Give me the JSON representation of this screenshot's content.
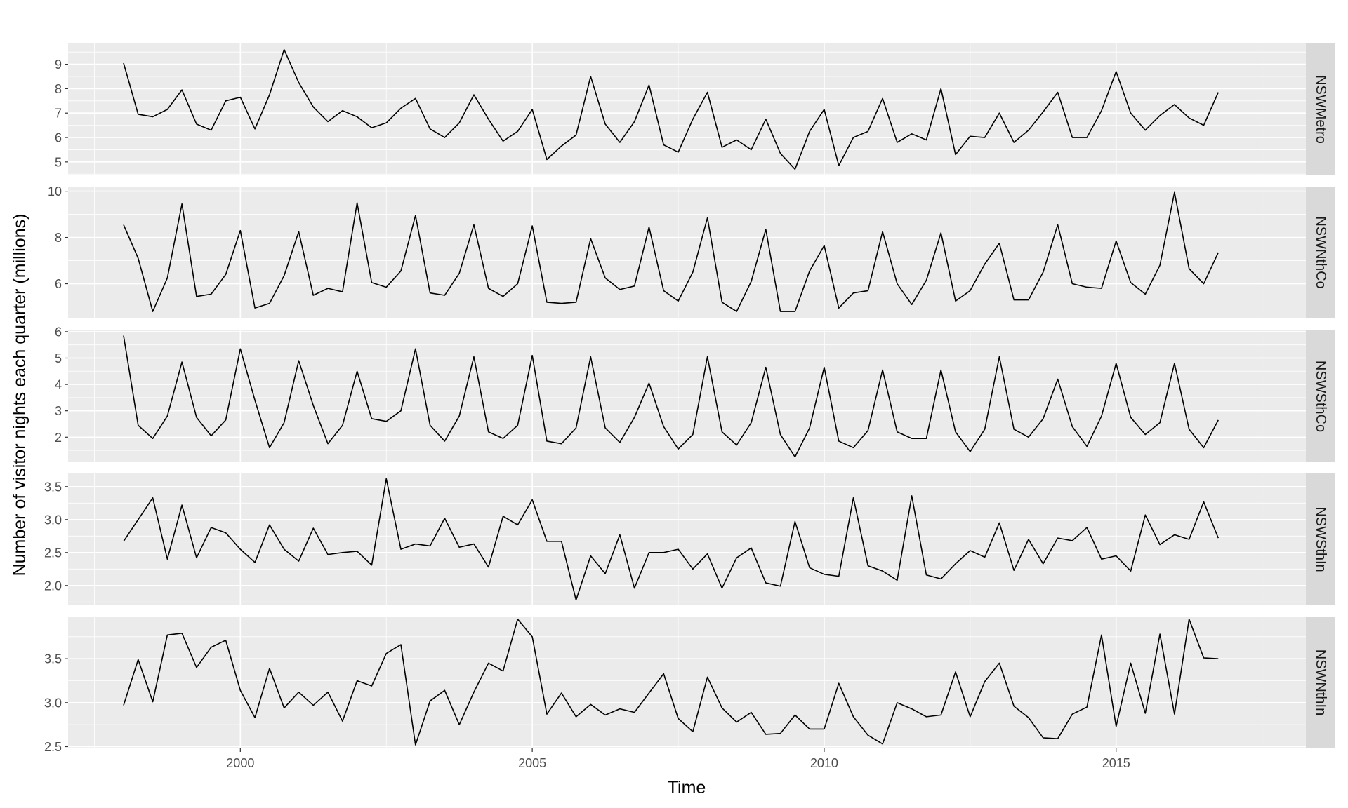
{
  "chart_data": {
    "type": "line",
    "facet": "vertical",
    "xlabel": "Time",
    "ylabel": "Number of visitor nights each quarter (millions)",
    "x_start": 1998.0,
    "x_step": 0.25,
    "xlim": [
      1997.05,
      2018.25
    ],
    "x_ticks": [
      2000,
      2005,
      2010,
      2015
    ],
    "grid": true,
    "series": [
      {
        "name": "NSWMetro",
        "ylim": [
          4.45,
          9.85
        ],
        "y_ticks": [
          5,
          6,
          7,
          8,
          9
        ],
        "values": [
          9.05,
          6.95,
          6.85,
          7.15,
          7.95,
          6.55,
          6.3,
          7.5,
          7.65,
          6.35,
          7.75,
          9.6,
          8.25,
          7.25,
          6.65,
          7.1,
          6.85,
          6.4,
          6.6,
          7.2,
          7.6,
          6.35,
          6.0,
          6.6,
          7.75,
          6.75,
          5.85,
          6.25,
          7.15,
          5.1,
          5.65,
          6.1,
          8.5,
          6.55,
          5.8,
          6.65,
          8.15,
          5.7,
          5.4,
          6.75,
          7.85,
          5.6,
          5.9,
          5.5,
          6.75,
          5.35,
          4.7,
          6.25,
          7.15,
          4.85,
          6.0,
          6.25,
          7.6,
          5.8,
          6.15,
          5.9,
          8.0,
          5.3,
          6.05,
          6.0,
          7.0,
          5.8,
          6.3,
          7.05,
          7.85,
          6.0,
          6.0,
          7.1,
          8.7,
          7.0,
          6.3,
          6.9,
          7.35,
          6.8,
          6.5,
          7.85
        ]
      },
      {
        "name": "NSWNthCo",
        "ylim": [
          4.5,
          10.2
        ],
        "y_ticks": [
          6,
          8,
          10
        ],
        "values": [
          8.55,
          7.1,
          4.8,
          6.25,
          9.45,
          5.45,
          5.55,
          6.4,
          8.3,
          4.95,
          5.15,
          6.35,
          8.25,
          5.5,
          5.8,
          5.65,
          9.5,
          6.05,
          5.85,
          6.55,
          8.95,
          5.6,
          5.5,
          6.45,
          8.55,
          5.8,
          5.45,
          6.0,
          8.5,
          5.2,
          5.15,
          5.2,
          7.95,
          6.25,
          5.75,
          5.9,
          8.45,
          5.7,
          5.25,
          6.5,
          8.85,
          5.2,
          4.8,
          6.1,
          8.35,
          4.8,
          4.8,
          6.55,
          7.65,
          4.95,
          5.6,
          5.7,
          8.25,
          6.0,
          5.1,
          6.15,
          8.2,
          5.25,
          5.7,
          6.85,
          7.75,
          5.3,
          5.3,
          6.5,
          8.55,
          6.0,
          5.85,
          5.8,
          7.85,
          6.05,
          5.55,
          6.8,
          9.95,
          6.65,
          6.0,
          7.35
        ]
      },
      {
        "name": "NSWSthCo",
        "ylim": [
          1.05,
          6.05
        ],
        "y_ticks": [
          2,
          3,
          4,
          5,
          6
        ],
        "values": [
          5.85,
          2.45,
          1.95,
          2.8,
          4.85,
          2.75,
          2.05,
          2.65,
          5.35,
          3.4,
          1.6,
          2.55,
          4.9,
          3.2,
          1.75,
          2.45,
          4.5,
          2.7,
          2.6,
          3.0,
          5.35,
          2.45,
          1.85,
          2.8,
          5.05,
          2.2,
          1.95,
          2.45,
          5.1,
          1.85,
          1.75,
          2.35,
          5.05,
          2.35,
          1.8,
          2.75,
          4.05,
          2.4,
          1.55,
          2.1,
          5.05,
          2.2,
          1.7,
          2.55,
          4.65,
          2.1,
          1.25,
          2.35,
          4.65,
          1.85,
          1.6,
          2.25,
          4.55,
          2.2,
          1.95,
          1.95,
          4.55,
          2.2,
          1.45,
          2.3,
          5.05,
          2.3,
          2.0,
          2.7,
          4.2,
          2.4,
          1.65,
          2.8,
          4.8,
          2.75,
          2.1,
          2.55,
          4.8,
          2.3,
          1.6,
          2.65
        ]
      },
      {
        "name": "NSWSthIn",
        "ylim": [
          1.7,
          3.7
        ],
        "y_ticks": [
          2.0,
          2.5,
          3.0,
          3.5
        ],
        "values": [
          2.67,
          3.0,
          3.33,
          2.4,
          3.22,
          2.42,
          2.88,
          2.8,
          2.55,
          2.35,
          2.92,
          2.55,
          2.37,
          2.87,
          2.47,
          2.5,
          2.52,
          2.31,
          3.62,
          2.55,
          2.63,
          2.6,
          3.02,
          2.58,
          2.63,
          2.28,
          3.05,
          2.92,
          3.3,
          2.67,
          2.67,
          1.78,
          2.45,
          2.18,
          2.77,
          1.96,
          2.5,
          2.5,
          2.55,
          2.25,
          2.48,
          1.96,
          2.42,
          2.57,
          2.04,
          1.99,
          2.97,
          2.27,
          2.17,
          2.14,
          3.33,
          2.3,
          2.22,
          2.08,
          3.36,
          2.16,
          2.1,
          2.33,
          2.53,
          2.43,
          2.95,
          2.23,
          2.7,
          2.33,
          2.72,
          2.68,
          2.88,
          2.4,
          2.45,
          2.22,
          3.07,
          2.62,
          2.77,
          2.7,
          3.27,
          2.72
        ]
      },
      {
        "name": "NSWNthIn",
        "ylim": [
          2.48,
          3.98
        ],
        "y_ticks": [
          2.5,
          3.0,
          3.5
        ],
        "values": [
          2.97,
          3.49,
          3.01,
          3.77,
          3.79,
          3.4,
          3.63,
          3.71,
          3.14,
          2.83,
          3.39,
          2.94,
          3.12,
          2.97,
          3.12,
          2.79,
          3.25,
          3.19,
          3.56,
          3.66,
          2.52,
          3.02,
          3.14,
          2.75,
          3.12,
          3.45,
          3.36,
          3.95,
          3.75,
          2.87,
          3.11,
          2.84,
          2.98,
          2.86,
          2.93,
          2.89,
          3.11,
          3.33,
          2.82,
          2.67,
          3.29,
          2.94,
          2.78,
          2.89,
          2.64,
          2.65,
          2.86,
          2.7,
          2.7,
          3.22,
          2.84,
          2.63,
          2.53,
          3.0,
          2.93,
          2.84,
          2.86,
          3.35,
          2.84,
          3.24,
          3.45,
          2.96,
          2.83,
          2.6,
          2.59,
          2.87,
          2.95,
          3.77,
          2.73,
          3.45,
          2.88,
          3.78,
          2.87,
          3.95,
          3.51,
          3.5
        ]
      }
    ]
  }
}
